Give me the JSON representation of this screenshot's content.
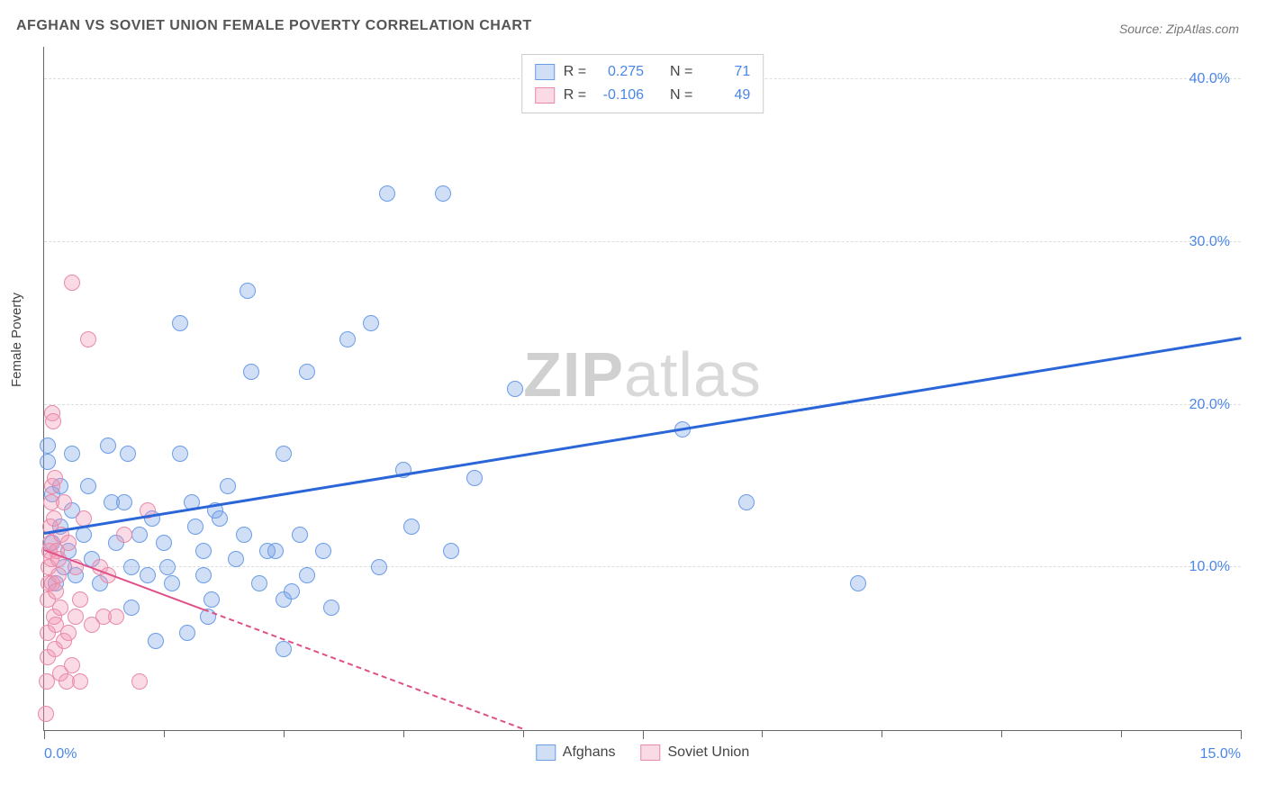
{
  "title": "AFGHAN VS SOVIET UNION FEMALE POVERTY CORRELATION CHART",
  "source_label": "Source: ZipAtlas.com",
  "ylabel": "Female Poverty",
  "watermark_left": "ZIP",
  "watermark_right": "atlas",
  "chart": {
    "type": "scatter",
    "xlim": [
      0,
      15
    ],
    "ylim": [
      0,
      42
    ],
    "x_ticks": [
      0,
      7.5,
      15
    ],
    "x_tick_labels": [
      "0.0%",
      "",
      "15.0%"
    ],
    "x_minor_ticks": [
      1.5,
      3.0,
      4.5,
      6.0,
      9.0,
      10.5,
      12.0,
      13.5
    ],
    "y_gridlines": [
      10,
      20,
      30,
      40
    ],
    "y_tick_labels": [
      "10.0%",
      "20.0%",
      "30.0%",
      "40.0%"
    ],
    "background_color": "#ffffff",
    "grid_color": "#dddddd",
    "axis_color": "#666666",
    "tick_label_color": "#4a86e8",
    "marker_radius": 9,
    "marker_stroke_width": 1.5,
    "series": [
      {
        "name": "Afghans",
        "fill": "rgba(120,160,230,0.35)",
        "stroke": "#6a9de8",
        "trend": {
          "x1": 0,
          "y1": 12.0,
          "x2": 15,
          "y2": 24.0,
          "color": "#2a66d8",
          "width": 3,
          "dashed_after_x": null
        },
        "r_value": "0.275",
        "n_value": "71",
        "points": [
          [
            0.05,
            17.5
          ],
          [
            0.05,
            16.5
          ],
          [
            0.1,
            11.5
          ],
          [
            0.1,
            14.5
          ],
          [
            0.15,
            9.0
          ],
          [
            0.2,
            12.5
          ],
          [
            0.2,
            15.0
          ],
          [
            0.25,
            10.0
          ],
          [
            0.3,
            11.0
          ],
          [
            0.35,
            17.0
          ],
          [
            0.35,
            13.5
          ],
          [
            0.4,
            9.5
          ],
          [
            0.5,
            12.0
          ],
          [
            0.55,
            15.0
          ],
          [
            0.6,
            10.5
          ],
          [
            0.7,
            9.0
          ],
          [
            0.8,
            17.5
          ],
          [
            0.85,
            14.0
          ],
          [
            0.9,
            11.5
          ],
          [
            1.0,
            14.0
          ],
          [
            1.05,
            17.0
          ],
          [
            1.1,
            10.0
          ],
          [
            1.1,
            7.5
          ],
          [
            1.2,
            12.0
          ],
          [
            1.3,
            9.5
          ],
          [
            1.35,
            13.0
          ],
          [
            1.4,
            5.5
          ],
          [
            1.5,
            11.5
          ],
          [
            1.55,
            10.0
          ],
          [
            1.6,
            9.0
          ],
          [
            1.7,
            17.0
          ],
          [
            1.7,
            25.0
          ],
          [
            1.8,
            6.0
          ],
          [
            1.85,
            14.0
          ],
          [
            1.9,
            12.5
          ],
          [
            2.0,
            9.5
          ],
          [
            2.0,
            11.0
          ],
          [
            2.05,
            7.0
          ],
          [
            2.1,
            8.0
          ],
          [
            2.15,
            13.5
          ],
          [
            2.2,
            13.0
          ],
          [
            2.3,
            15.0
          ],
          [
            2.4,
            10.5
          ],
          [
            2.5,
            12.0
          ],
          [
            2.55,
            27.0
          ],
          [
            2.6,
            22.0
          ],
          [
            2.7,
            9.0
          ],
          [
            2.8,
            11.0
          ],
          [
            2.9,
            11.0
          ],
          [
            3.0,
            5.0
          ],
          [
            3.0,
            17.0
          ],
          [
            3.0,
            8.0
          ],
          [
            3.1,
            8.5
          ],
          [
            3.2,
            12.0
          ],
          [
            3.3,
            9.5
          ],
          [
            3.3,
            22.0
          ],
          [
            3.5,
            11.0
          ],
          [
            3.6,
            7.5
          ],
          [
            3.8,
            24.0
          ],
          [
            4.1,
            25.0
          ],
          [
            4.2,
            10.0
          ],
          [
            4.3,
            33.0
          ],
          [
            4.5,
            16.0
          ],
          [
            4.6,
            12.5
          ],
          [
            5.0,
            33.0
          ],
          [
            5.1,
            11.0
          ],
          [
            5.4,
            15.5
          ],
          [
            5.9,
            21.0
          ],
          [
            8.0,
            18.5
          ],
          [
            8.8,
            14.0
          ],
          [
            10.2,
            9.0
          ]
        ]
      },
      {
        "name": "Soviet Union",
        "fill": "rgba(240,150,180,0.35)",
        "stroke": "#e88aa8",
        "trend": {
          "x1": 0,
          "y1": 11.0,
          "x2": 6.0,
          "y2": 0.0,
          "color": "#e05088",
          "width": 2.5,
          "dashed_after_x": 2.0
        },
        "r_value": "-0.106",
        "n_value": "49",
        "points": [
          [
            0.02,
            1.0
          ],
          [
            0.03,
            3.0
          ],
          [
            0.04,
            4.5
          ],
          [
            0.05,
            6.0
          ],
          [
            0.05,
            8.0
          ],
          [
            0.06,
            9.0
          ],
          [
            0.06,
            10.0
          ],
          [
            0.07,
            11.0
          ],
          [
            0.08,
            11.5
          ],
          [
            0.08,
            12.5
          ],
          [
            0.09,
            10.5
          ],
          [
            0.09,
            14.0
          ],
          [
            0.1,
            9.0
          ],
          [
            0.1,
            15.0
          ],
          [
            0.1,
            19.5
          ],
          [
            0.11,
            19.0
          ],
          [
            0.12,
            7.0
          ],
          [
            0.12,
            13.0
          ],
          [
            0.13,
            15.5
          ],
          [
            0.14,
            5.0
          ],
          [
            0.15,
            6.5
          ],
          [
            0.15,
            8.5
          ],
          [
            0.16,
            11.0
          ],
          [
            0.18,
            9.5
          ],
          [
            0.18,
            10.5
          ],
          [
            0.2,
            3.5
          ],
          [
            0.2,
            7.5
          ],
          [
            0.22,
            12.0
          ],
          [
            0.25,
            5.5
          ],
          [
            0.25,
            14.0
          ],
          [
            0.28,
            3.0
          ],
          [
            0.3,
            6.0
          ],
          [
            0.3,
            11.5
          ],
          [
            0.35,
            4.0
          ],
          [
            0.35,
            27.5
          ],
          [
            0.4,
            7.0
          ],
          [
            0.4,
            10.0
          ],
          [
            0.45,
            3.0
          ],
          [
            0.45,
            8.0
          ],
          [
            0.5,
            13.0
          ],
          [
            0.55,
            24.0
          ],
          [
            0.6,
            6.5
          ],
          [
            0.7,
            10.0
          ],
          [
            0.75,
            7.0
          ],
          [
            0.8,
            9.5
          ],
          [
            0.9,
            7.0
          ],
          [
            1.0,
            12.0
          ],
          [
            1.2,
            3.0
          ],
          [
            1.3,
            13.5
          ]
        ]
      }
    ]
  },
  "legend_top": {
    "r_label": "R =",
    "n_label": "N ="
  },
  "legend_bottom": {
    "items": [
      "Afghans",
      "Soviet Union"
    ]
  }
}
